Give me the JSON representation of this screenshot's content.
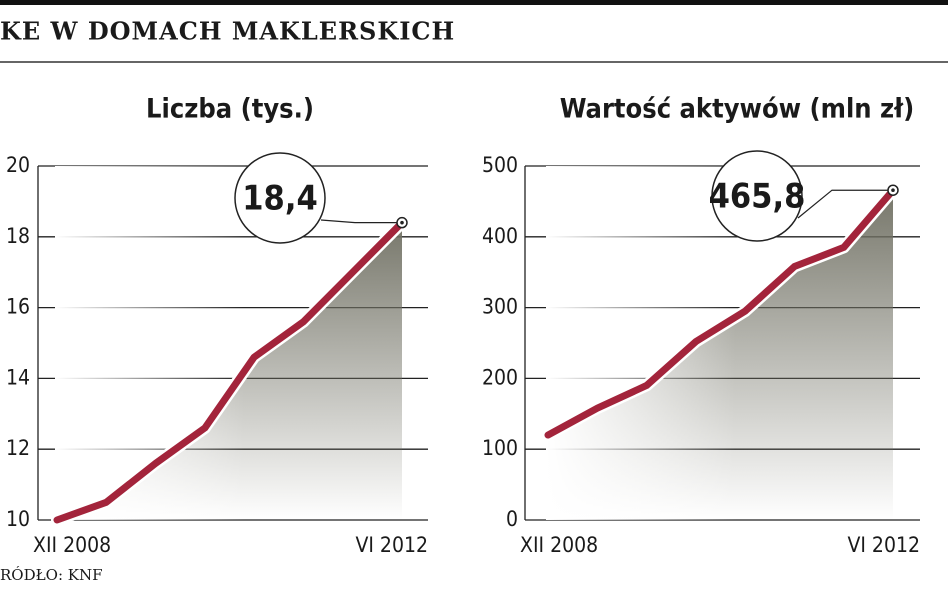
{
  "header": {
    "title": "KE W DOMACH MAKLERSKICH",
    "source": "RÓDŁO: KNF"
  },
  "chart_data": [
    {
      "type": "line",
      "title": "Liczba (tys.)",
      "categories": [
        "XII 2008",
        null,
        null,
        null,
        null,
        null,
        null,
        "VI 2012"
      ],
      "values": [
        10.0,
        10.5,
        11.6,
        12.6,
        14.6,
        15.6,
        17.0,
        18.4
      ],
      "value_labels": [
        null,
        null,
        null,
        null,
        null,
        null,
        null,
        "18,4"
      ],
      "color": "#a3243b",
      "ylim": [
        10,
        20
      ],
      "yticks": [
        10,
        12,
        14,
        16,
        18,
        20
      ],
      "grid": true
    },
    {
      "type": "line",
      "title": "Wartość aktywów (mln zł)",
      "categories": [
        "XII 2008",
        null,
        null,
        null,
        null,
        null,
        null,
        "VI 2012"
      ],
      "values": [
        120,
        158,
        190,
        252,
        295,
        358,
        385,
        465.8
      ],
      "value_labels": [
        null,
        null,
        null,
        null,
        null,
        null,
        null,
        "465,8"
      ],
      "color": "#a3243b",
      "ylim": [
        0,
        500
      ],
      "yticks": [
        0,
        100,
        200,
        300,
        400,
        500
      ],
      "grid": true
    }
  ]
}
